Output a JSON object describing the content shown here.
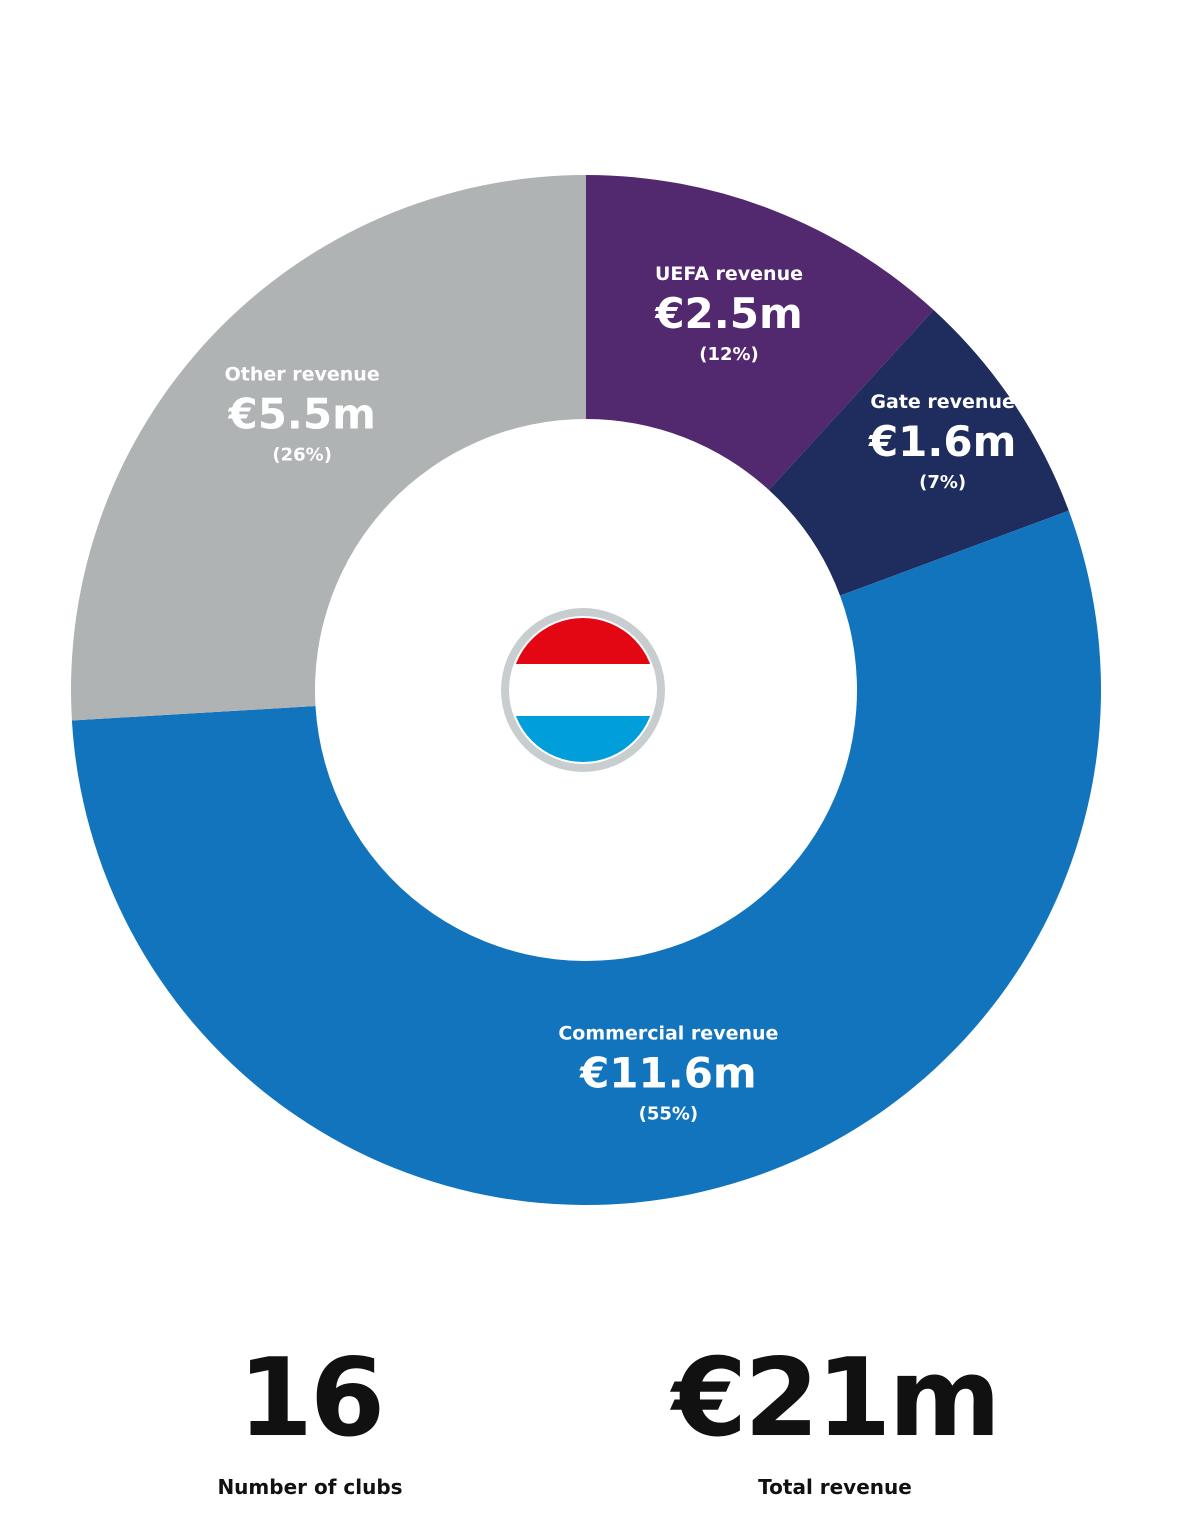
{
  "chart_data": {
    "type": "pie",
    "variant": "donut",
    "currency_unit": "€m",
    "slices": [
      {
        "name": "UEFA revenue",
        "value": 2.5,
        "value_label": "€2.5m",
        "percent_label": "(12%)",
        "color": "#52286E"
      },
      {
        "name": "Gate revenue",
        "value": 1.6,
        "value_label": "€1.6m",
        "percent_label": "(7%)",
        "color": "#1E2D5E"
      },
      {
        "name": "Commercial revenue",
        "value": 11.6,
        "value_label": "€11.6m",
        "percent_label": "(55%)",
        "color": "#1274BC"
      },
      {
        "name": "Other revenue",
        "value": 5.5,
        "value_label": "€5.5m",
        "percent_label": "(26%)",
        "color": "#B0B3B4"
      }
    ],
    "center_icon": "luxembourg-flag-icon",
    "flag_colors": [
      "#E30613",
      "#FFFFFF",
      "#009EDB"
    ]
  },
  "stats": {
    "clubs_value": "16",
    "clubs_label": "Number of clubs",
    "revenue_value": "€21m",
    "revenue_label": "Total revenue"
  }
}
